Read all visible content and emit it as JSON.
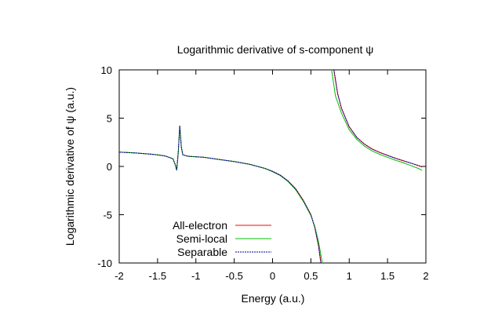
{
  "chart_data": {
    "type": "line",
    "title": "Logarithmic derivative of s-component ψ",
    "xlabel": "Energy (a.u.)",
    "ylabel": "Logarithmic derivative of ψ (a.u.)",
    "xlim": [
      -2,
      2
    ],
    "ylim": [
      -10,
      10
    ],
    "xticks": [
      "-2",
      "-1.5",
      "-1",
      "-0.5",
      "0",
      "0.5",
      "1",
      "1.5",
      "2"
    ],
    "yticks": [
      "10",
      "5",
      "0",
      "-5",
      "-10"
    ],
    "grid": false,
    "legend_position": "bottom-left",
    "colors": {
      "all_electron": "#ff0000",
      "semi_local": "#00c000",
      "separable": "#0000a0"
    },
    "series": [
      {
        "name": "All-electron",
        "points": [
          [
            -2,
            1.48
          ],
          [
            -1.8,
            1.4
          ],
          [
            -1.6,
            1.28
          ],
          [
            -1.5,
            1.2
          ],
          [
            -1.4,
            1.08
          ],
          [
            -1.3,
            0.8
          ],
          [
            -0.9,
            0.95
          ],
          [
            -0.7,
            0.72
          ],
          [
            -0.5,
            0.5
          ],
          [
            -0.3,
            0.22
          ],
          [
            -0.1,
            -0.2
          ],
          [
            0,
            -0.5
          ],
          [
            0.1,
            -0.9
          ],
          [
            0.2,
            -1.5
          ],
          [
            0.3,
            -2.3
          ],
          [
            0.4,
            -3.5
          ],
          [
            0.5,
            -5.0
          ],
          [
            0.55,
            -6.3
          ],
          [
            0.6,
            -8.2
          ],
          [
            0.63,
            -10
          ],
          [
            0.8,
            10
          ],
          [
            0.85,
            7.5
          ],
          [
            0.9,
            6.0
          ],
          [
            1.0,
            4.1
          ],
          [
            1.1,
            3.0
          ],
          [
            1.2,
            2.3
          ],
          [
            1.3,
            1.8
          ],
          [
            1.4,
            1.45
          ],
          [
            1.5,
            1.15
          ],
          [
            1.6,
            0.85
          ],
          [
            1.7,
            0.6
          ],
          [
            1.8,
            0.35
          ],
          [
            1.9,
            0.1
          ],
          [
            1.95,
            -0.05
          ]
        ]
      },
      {
        "name": "Semi-local",
        "points": [
          [
            -2,
            1.48
          ],
          [
            -1.8,
            1.4
          ],
          [
            -1.6,
            1.28
          ],
          [
            -1.5,
            1.2
          ],
          [
            -1.4,
            1.08
          ],
          [
            -1.3,
            0.8
          ],
          [
            -0.9,
            0.95
          ],
          [
            -0.7,
            0.72
          ],
          [
            -0.5,
            0.5
          ],
          [
            -0.3,
            0.22
          ],
          [
            -0.1,
            -0.2
          ],
          [
            0,
            -0.55
          ],
          [
            0.1,
            -0.95
          ],
          [
            0.2,
            -1.55
          ],
          [
            0.3,
            -2.4
          ],
          [
            0.4,
            -3.6
          ],
          [
            0.5,
            -5.1
          ],
          [
            0.55,
            -6.2
          ],
          [
            0.6,
            -7.8
          ],
          [
            0.65,
            -10
          ],
          [
            0.77,
            10
          ],
          [
            0.82,
            7.3
          ],
          [
            0.9,
            5.5
          ],
          [
            1.0,
            3.8
          ],
          [
            1.1,
            2.8
          ],
          [
            1.2,
            2.1
          ],
          [
            1.3,
            1.6
          ],
          [
            1.4,
            1.25
          ],
          [
            1.5,
            0.95
          ],
          [
            1.6,
            0.65
          ],
          [
            1.7,
            0.4
          ],
          [
            1.8,
            0.1
          ],
          [
            1.9,
            -0.2
          ],
          [
            1.95,
            -0.4
          ]
        ]
      },
      {
        "name": "Separable",
        "points": [
          [
            -2,
            1.48
          ],
          [
            -1.8,
            1.4
          ],
          [
            -1.6,
            1.28
          ],
          [
            -1.5,
            1.2
          ],
          [
            -1.4,
            1.08
          ],
          [
            -1.3,
            0.8
          ],
          [
            -0.9,
            0.95
          ],
          [
            -0.7,
            0.72
          ],
          [
            -0.5,
            0.5
          ],
          [
            -0.3,
            0.22
          ],
          [
            -0.1,
            -0.2
          ],
          [
            0,
            -0.5
          ],
          [
            0.1,
            -0.9
          ],
          [
            0.2,
            -1.5
          ],
          [
            0.3,
            -2.3
          ],
          [
            0.4,
            -3.5
          ],
          [
            0.5,
            -5.0
          ],
          [
            0.55,
            -6.3
          ],
          [
            0.6,
            -8.2
          ],
          [
            0.63,
            -10
          ],
          [
            0.8,
            10
          ],
          [
            0.85,
            7.5
          ],
          [
            0.9,
            6.0
          ],
          [
            1.0,
            4.1
          ],
          [
            1.1,
            3.0
          ],
          [
            1.2,
            2.3
          ],
          [
            1.3,
            1.8
          ],
          [
            1.4,
            1.45
          ],
          [
            1.5,
            1.15
          ],
          [
            1.6,
            0.85
          ],
          [
            1.7,
            0.6
          ],
          [
            1.8,
            0.35
          ],
          [
            1.9,
            0.1
          ],
          [
            1.95,
            -0.05
          ]
        ]
      }
    ],
    "spike": [
      [
        -1.3,
        0.8
      ],
      [
        -1.27,
        0.2
      ],
      [
        -1.25,
        -0.4
      ],
      [
        -1.23,
        1.5
      ],
      [
        -1.21,
        4.2
      ],
      [
        -1.19,
        2.0
      ],
      [
        -1.17,
        1.2
      ],
      [
        -1.1,
        1.05
      ],
      [
        -0.9,
        0.95
      ]
    ]
  }
}
